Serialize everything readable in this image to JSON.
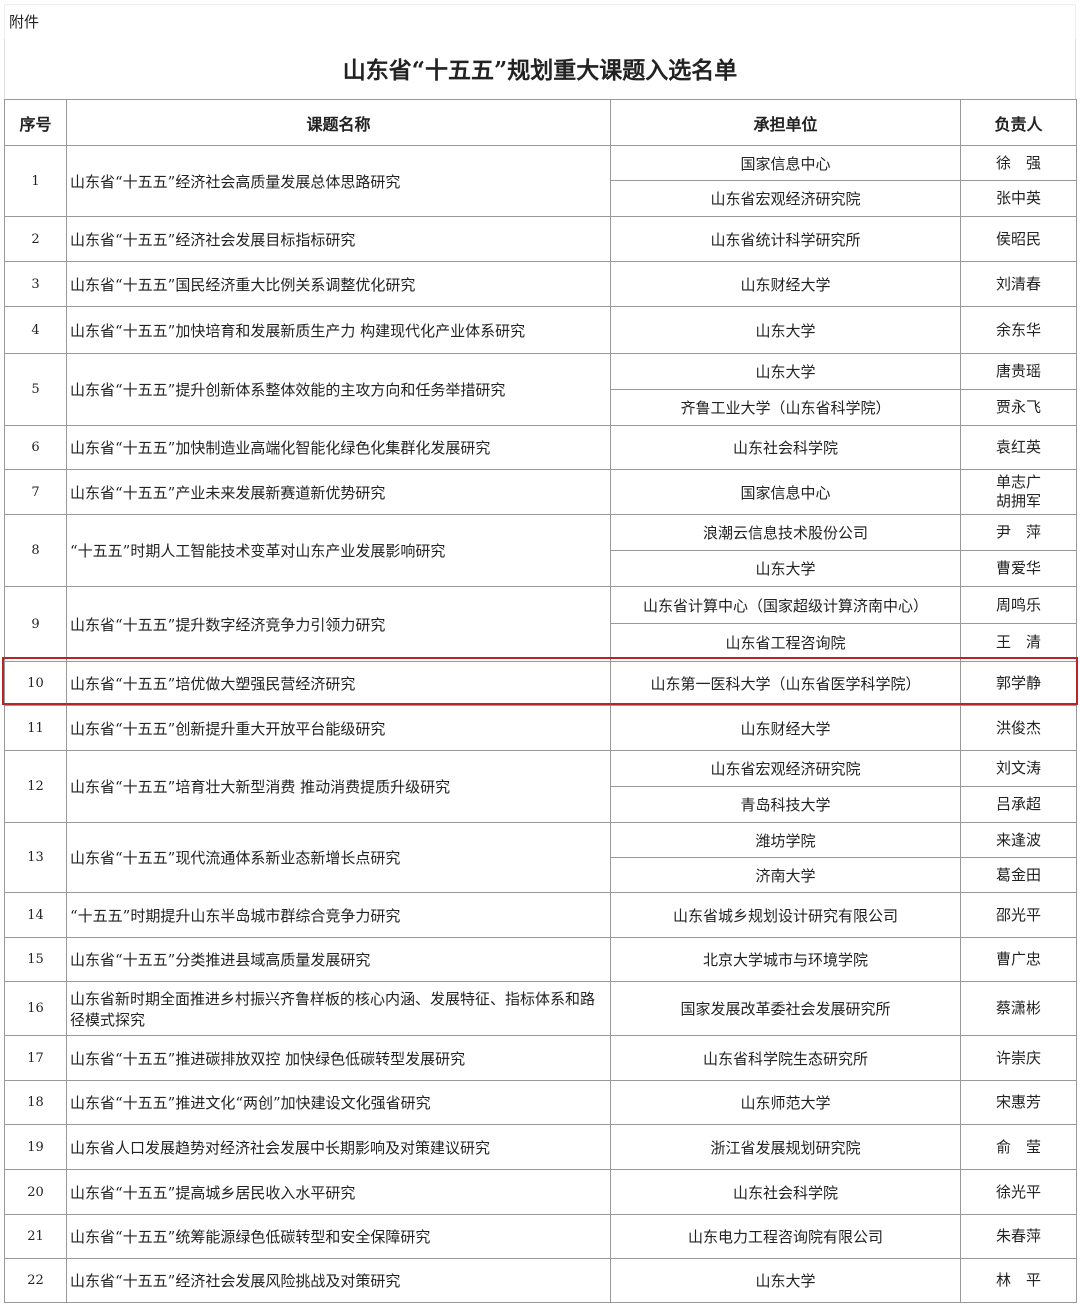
{
  "attachment_label": "附件",
  "title": "山东省“十五五”规划重大课题入选名单",
  "highlight_color": "#b3272a",
  "headers": {
    "no": "序号",
    "topic": "课题名称",
    "unit": "承担单位",
    "leader": "负责人"
  },
  "highlighted_row": 10,
  "rows": [
    {
      "no": "1",
      "topic": "山东省“十五五”经济社会高质量发展总体思路研究",
      "entries": [
        {
          "unit": "国家信息中心",
          "leader": "徐　强"
        },
        {
          "unit": "山东省宏观经济研究院",
          "leader": "张中英"
        }
      ]
    },
    {
      "no": "2",
      "topic": "山东省“十五五”经济社会发展目标指标研究",
      "entries": [
        {
          "unit": "山东省统计科学研究所",
          "leader": "侯昭民"
        }
      ]
    },
    {
      "no": "3",
      "topic": "山东省“十五五”国民经济重大比例关系调整优化研究",
      "entries": [
        {
          "unit": "山东财经大学",
          "leader": "刘清春"
        }
      ]
    },
    {
      "no": "4",
      "topic": "山东省“十五五”加快培育和发展新质生产力 构建现代化产业体系研究",
      "entries": [
        {
          "unit": "山东大学",
          "leader": "余东华"
        }
      ]
    },
    {
      "no": "5",
      "topic": "山东省“十五五”提升创新体系整体效能的主攻方向和任务举措研究",
      "entries": [
        {
          "unit": "山东大学",
          "leader": "唐贵瑶"
        },
        {
          "unit": "齐鲁工业大学（山东省科学院）",
          "leader": "贾永飞"
        }
      ]
    },
    {
      "no": "6",
      "topic": "山东省“十五五”加快制造业高端化智能化绿色化集群化发展研究",
      "entries": [
        {
          "unit": "山东社会科学院",
          "leader": "袁红英"
        }
      ]
    },
    {
      "no": "7",
      "topic": "山东省“十五五”产业未来发展新赛道新优势研究",
      "entries": [
        {
          "unit": "国家信息中心",
          "leader": "单志广\n胡拥军"
        }
      ]
    },
    {
      "no": "8",
      "topic": "“十五五”时期人工智能技术变革对山东产业发展影响研究",
      "entries": [
        {
          "unit": "浪潮云信息技术股份公司",
          "leader": "尹　萍"
        },
        {
          "unit": "山东大学",
          "leader": "曹爱华"
        }
      ]
    },
    {
      "no": "9",
      "topic": "山东省“十五五”提升数字经济竞争力引领力研究",
      "entries": [
        {
          "unit": "山东省计算中心（国家超级计算济南中心）",
          "leader": "周鸣乐"
        },
        {
          "unit": "山东省工程咨询院",
          "leader": "王　清"
        }
      ]
    },
    {
      "no": "10",
      "topic": "山东省“十五五”培优做大塑强民营经济研究",
      "entries": [
        {
          "unit": "山东第一医科大学（山东省医学科学院）",
          "leader": "郭学静"
        }
      ]
    },
    {
      "no": "11",
      "topic": "山东省“十五五”创新提升重大开放平台能级研究",
      "entries": [
        {
          "unit": "山东财经大学",
          "leader": "洪俊杰"
        }
      ]
    },
    {
      "no": "12",
      "topic": "山东省“十五五”培育壮大新型消费 推动消费提质升级研究",
      "entries": [
        {
          "unit": "山东省宏观经济研究院",
          "leader": "刘文涛"
        },
        {
          "unit": "青岛科技大学",
          "leader": "吕承超"
        }
      ]
    },
    {
      "no": "13",
      "topic": "山东省“十五五”现代流通体系新业态新增长点研究",
      "entries": [
        {
          "unit": "潍坊学院",
          "leader": "来逢波"
        },
        {
          "unit": "济南大学",
          "leader": "葛金田"
        }
      ]
    },
    {
      "no": "14",
      "topic": "“十五五”时期提升山东半岛城市群综合竞争力研究",
      "entries": [
        {
          "unit": "山东省城乡规划设计研究有限公司",
          "leader": "邵光平"
        }
      ]
    },
    {
      "no": "15",
      "topic": "山东省“十五五”分类推进县域高质量发展研究",
      "entries": [
        {
          "unit": "北京大学城市与环境学院",
          "leader": "曹广忠"
        }
      ]
    },
    {
      "no": "16",
      "topic": "山东省新时期全面推进乡村振兴齐鲁样板的核心内涵、发展特征、指标体系和路径模式探究",
      "entries": [
        {
          "unit": "国家发展改革委社会发展研究所",
          "leader": "蔡潇彬"
        }
      ]
    },
    {
      "no": "17",
      "topic": "山东省“十五五”推进碳排放双控 加快绿色低碳转型发展研究",
      "entries": [
        {
          "unit": "山东省科学院生态研究所",
          "leader": "许崇庆"
        }
      ]
    },
    {
      "no": "18",
      "topic": "山东省“十五五”推进文化“两创”加快建设文化强省研究",
      "entries": [
        {
          "unit": "山东师范大学",
          "leader": "宋惠芳"
        }
      ]
    },
    {
      "no": "19",
      "topic": "山东省人口发展趋势对经济社会发展中长期影响及对策建议研究",
      "entries": [
        {
          "unit": "浙江省发展规划研究院",
          "leader": "俞　莹"
        }
      ]
    },
    {
      "no": "20",
      "topic": "山东省“十五五”提高城乡居民收入水平研究",
      "entries": [
        {
          "unit": "山东社会科学院",
          "leader": "徐光平"
        }
      ]
    },
    {
      "no": "21",
      "topic": "山东省“十五五”统筹能源绿色低碳转型和安全保障研究",
      "entries": [
        {
          "unit": "山东电力工程咨询院有限公司",
          "leader": "朱春萍"
        }
      ]
    },
    {
      "no": "22",
      "topic": "山东省“十五五”经济社会发展风险挑战及对策研究",
      "entries": [
        {
          "unit": "山东大学",
          "leader": "林　平"
        }
      ]
    }
  ]
}
